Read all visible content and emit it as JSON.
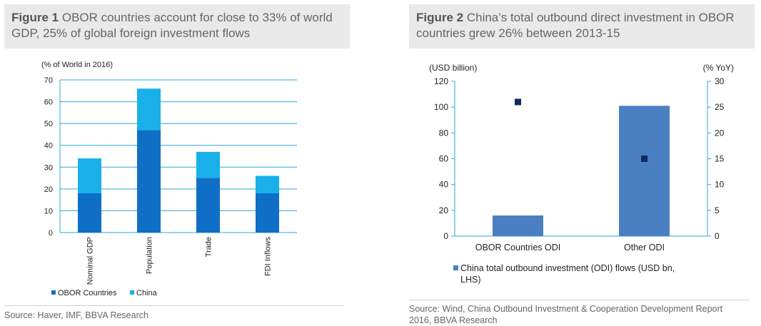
{
  "figure1": {
    "title_label": "Figure 1",
    "title_text": " OBOR countries account for close to 33% of world GDP, 25% of global foreign investment flows",
    "source": "Source: Haver, IMF, BBVA Research"
  },
  "figure2": {
    "title_label": "Figure 2",
    "title_text": " China’s total outbound direct investment in OBOR countries grew 26% between 2013-15",
    "source": "Source:  Wind, China Outbound Investment & Cooperation Development Report 2016, BBVA Research"
  },
  "chart_data": [
    {
      "type": "bar",
      "stacked": true,
      "ylabel": "(% of World in 2016)",
      "ylim": [
        0,
        70
      ],
      "yticks": [
        0,
        10,
        20,
        30,
        40,
        50,
        60,
        70
      ],
      "grid": true,
      "legend_position": "bottom-left",
      "categories": [
        "Nominal GDP",
        "Population",
        "Trade",
        "FDI Inflows"
      ],
      "series": [
        {
          "name": "OBOR Countries",
          "values": [
            18,
            47,
            25,
            18
          ],
          "color": "#0f6fc6"
        },
        {
          "name": "China",
          "values": [
            16,
            19,
            12,
            8
          ],
          "color": "#19b0ea"
        }
      ]
    },
    {
      "type": "bar",
      "ylabel_left": "(USD billion)",
      "ylabel_right": "(% YoY)",
      "ylim_left": [
        0,
        120
      ],
      "ylim_right": [
        0,
        30
      ],
      "yticks_left": [
        0,
        20,
        40,
        60,
        80,
        100,
        120
      ],
      "yticks_right": [
        0,
        5,
        10,
        15,
        20,
        25,
        30
      ],
      "grid": false,
      "legend_position": "bottom",
      "categories": [
        "OBOR Countries ODI",
        "Other ODI"
      ],
      "series": [
        {
          "name": "China total outbound investment (ODI) flows (USD bn, LHS)",
          "type": "bar",
          "axis": "left",
          "values": [
            16,
            101
          ],
          "color": "#4a7fc1"
        },
        {
          "name": "",
          "type": "marker",
          "axis": "right",
          "values": [
            26,
            15
          ],
          "color": "#0d2b5c"
        }
      ]
    }
  ]
}
